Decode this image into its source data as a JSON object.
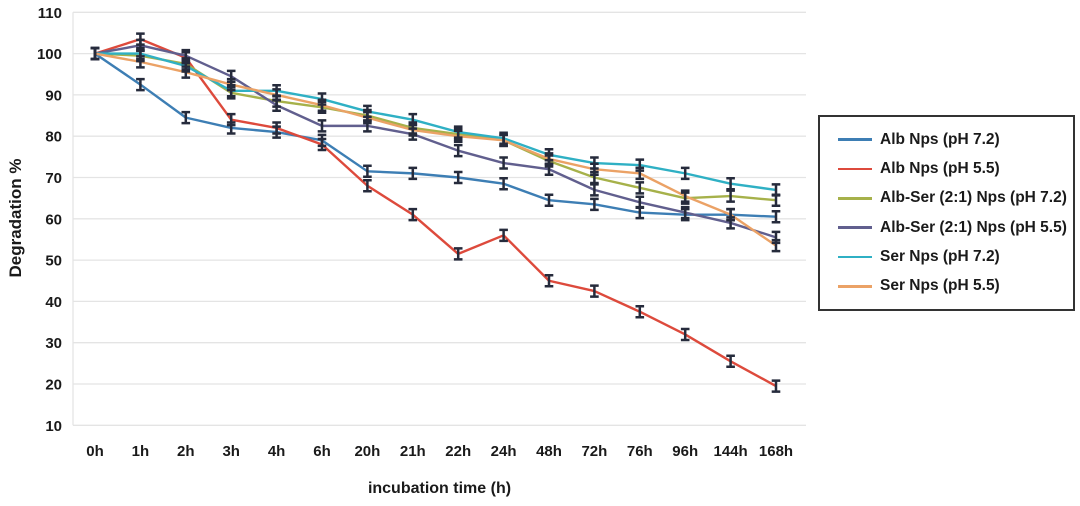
{
  "chart_data": {
    "type": "line",
    "title": "",
    "xlabel": "incubation time (h)",
    "ylabel": "Degradation %",
    "categories": [
      "0h",
      "1h",
      "2h",
      "3h",
      "4h",
      "6h",
      "20h",
      "21h",
      "22h",
      "24h",
      "48h",
      "72h",
      "76h",
      "96h",
      "144h",
      "168h"
    ],
    "ylim": [
      10,
      110
    ],
    "ytick_step": 10,
    "grid": true,
    "legend_position": "right",
    "error_bars": true,
    "marker_color": "#262b3c",
    "series": [
      {
        "name": "Alb Nps (pH 7.2)",
        "color": "#3d7eb4",
        "values": [
          100,
          92.5,
          84.5,
          82,
          81,
          79,
          71.5,
          71,
          70,
          68.5,
          64.5,
          63.5,
          61.5,
          61,
          61,
          60.5
        ]
      },
      {
        "name": "Alb Nps (pH 5.5)",
        "color": "#dd4a3c",
        "values": [
          100,
          103.5,
          99,
          84,
          82,
          78,
          68,
          61,
          51.5,
          56,
          45,
          42.5,
          37.5,
          32,
          25.5,
          19.5
        ]
      },
      {
        "name": "Alb-Ser (2:1) Nps (pH 7.2)",
        "color": "#a6b14a",
        "values": [
          100,
          99.5,
          97.5,
          90.5,
          88.5,
          87,
          85,
          82,
          80.5,
          79,
          74,
          70,
          67.5,
          65,
          65.5,
          64.5
        ]
      },
      {
        "name": "Alb-Ser (2:1) Nps (pH 5.5)",
        "color": "#615f8e",
        "values": [
          100,
          102,
          99.5,
          94.5,
          87.5,
          82.5,
          82.5,
          80.5,
          76.5,
          73.5,
          72,
          67,
          64,
          61.5,
          59,
          55.5
        ]
      },
      {
        "name": "Ser Nps (pH 7.2)",
        "color": "#2fb0c4",
        "values": [
          100,
          100,
          97,
          91,
          91,
          89,
          86,
          84,
          81,
          79.5,
          75.5,
          73.5,
          73,
          71,
          68.5,
          67
        ]
      },
      {
        "name": "Ser Nps (pH 5.5)",
        "color": "#eba266",
        "values": [
          100,
          98,
          95.5,
          92.5,
          90,
          87.5,
          84.5,
          81.5,
          80,
          79,
          74.5,
          72,
          71,
          65.5,
          61,
          53.5
        ]
      }
    ]
  }
}
